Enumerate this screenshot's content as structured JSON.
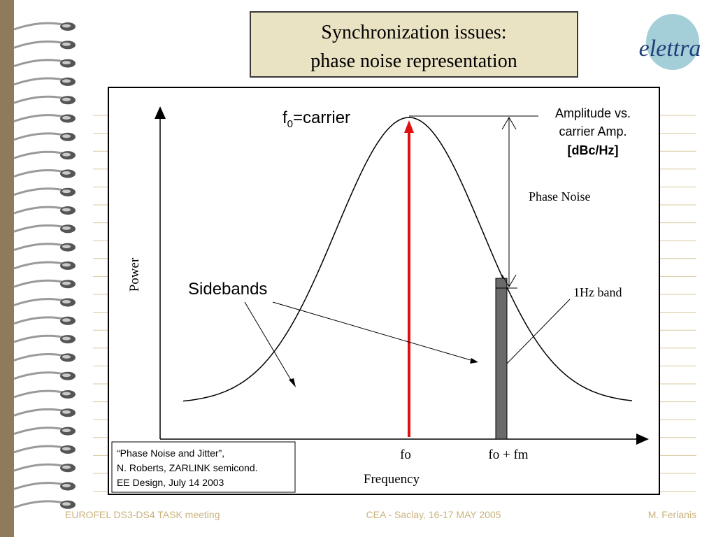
{
  "title": {
    "lines": [
      "Synchronization issues:",
      "phase noise representation"
    ]
  },
  "logo": "elettra",
  "diagram": {
    "carrier_label": {
      "base": "f",
      "sub": "0",
      "rest": "=carrier"
    },
    "amplitude_note": [
      "Amplitude vs.",
      "carrier Amp.",
      "[dBc/Hz]"
    ],
    "phase_noise": "Phase Noise",
    "band_label": "1Hz band",
    "y_axis": "Power",
    "sidebands": "Sidebands",
    "x_ticks": [
      "fo",
      "fo + fm"
    ],
    "x_axis": "Frequency"
  },
  "reference": [
    "“Phase Noise and Jitter”,",
    "N. Roberts,  ZARLINK semicond.",
    "EE Design, July 14 2003"
  ],
  "footer": {
    "left": "EUROFEL DS3-DS4 TASK meeting",
    "center": "CEA - Saclay, 16-17 MAY 2005",
    "right": "M. Ferianis"
  }
}
